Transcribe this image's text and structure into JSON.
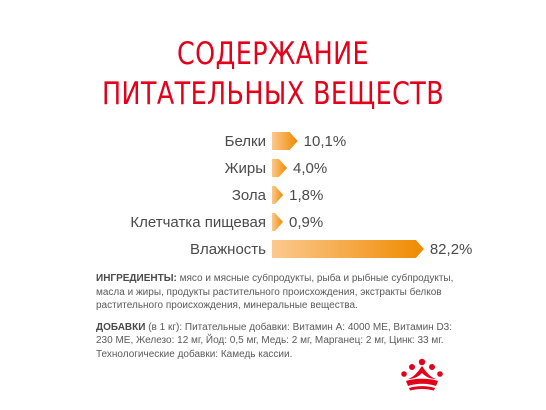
{
  "title": {
    "line1": "СОДЕРЖАНИЕ",
    "line2": "ПИТАТЕЛЬНЫХ ВЕЩЕСТВ"
  },
  "chart_data": {
    "type": "bar",
    "orientation": "horizontal",
    "categories": [
      "Белки",
      "Жиры",
      "Зола",
      "Клетчатка пищевая",
      "Влажность"
    ],
    "values": [
      10.1,
      4.0,
      1.8,
      0.9,
      82.2
    ],
    "value_labels": [
      "10,1%",
      "4,0%",
      "1,8%",
      "0,9%",
      "82,2%"
    ],
    "unit": "%",
    "xlim": [
      0,
      100
    ],
    "grid": false,
    "legend": "none",
    "colors": {
      "bar_start": "#fbc98f",
      "bar_end": "#f08a00",
      "label": "#4a4a4a"
    }
  },
  "text": {
    "ingredients_heading": "ИНГРЕДИЕНТЫ:",
    "ingredients_body": " мясо и мясные субпродукты, рыба и рыбные субпродукты, масла и жиры, продукты растительного происхождения, экстракты белков растительного происхождения, минеральные вещества.",
    "additives_heading": "ДОБАВКИ",
    "additives_body": " (в 1 кг): Питательные добавки: Витамин А: 4000 МЕ, Витамин D3: 230 МЕ, Железо: 12 мг, Йод: 0,5 мг, Медь: 2 мг, Марганец: 2 мг, Цинк: 33 мг. Технологические добавки: Камедь кассии."
  },
  "logo": {
    "icon": "royal-canin-crown-icon",
    "color": "#e2001a"
  }
}
